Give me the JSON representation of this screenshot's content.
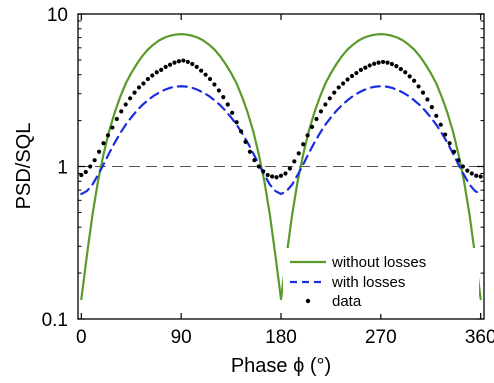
{
  "chart_data": {
    "type": "line",
    "title": "",
    "xlabel": "Phase ϕ (°)",
    "ylabel": "PSD/SQL",
    "xlim": [
      -3,
      363
    ],
    "ylim": [
      0.1,
      10
    ],
    "yscale": "log",
    "xticks": [
      0,
      90,
      180,
      270,
      360
    ],
    "xtick_labels": [
      "0",
      "90",
      "180",
      "270",
      "360"
    ],
    "yticks": [
      0.1,
      1,
      10
    ],
    "ytick_labels": [
      "0.1",
      "1",
      "10"
    ],
    "grid": false,
    "legend_position": "bottom-right",
    "reference_line": {
      "y": 1,
      "style": "dashed",
      "color": "#555555"
    },
    "series": [
      {
        "name": "without losses",
        "style": "solid",
        "color": "#5a9a2a",
        "x": [
          0,
          5,
          10,
          15,
          20,
          25,
          30,
          35,
          40,
          45,
          50,
          55,
          60,
          65,
          70,
          75,
          80,
          85,
          90,
          95,
          100,
          105,
          110,
          115,
          120,
          125,
          130,
          135,
          140,
          145,
          150,
          155,
          160,
          165,
          170,
          175,
          180,
          185,
          190,
          195,
          200,
          205,
          210,
          215,
          220,
          225,
          230,
          235,
          240,
          245,
          250,
          255,
          260,
          265,
          270,
          275,
          280,
          285,
          290,
          295,
          300,
          305,
          310,
          315,
          320,
          325,
          330,
          335,
          340,
          345,
          350,
          355,
          360
        ],
        "y": [
          0.135,
          0.26,
          0.48,
          0.8,
          1.2,
          1.7,
          2.25,
          2.85,
          3.5,
          4.1,
          4.7,
          5.3,
          5.85,
          6.3,
          6.7,
          7.0,
          7.2,
          7.33,
          7.38,
          7.33,
          7.2,
          7.0,
          6.7,
          6.3,
          5.85,
          5.3,
          4.7,
          4.1,
          3.5,
          2.85,
          2.25,
          1.7,
          1.2,
          0.8,
          0.48,
          0.26,
          0.135,
          0.26,
          0.48,
          0.8,
          1.2,
          1.7,
          2.25,
          2.85,
          3.5,
          4.1,
          4.7,
          5.3,
          5.85,
          6.3,
          6.7,
          7.0,
          7.2,
          7.33,
          7.38,
          7.33,
          7.2,
          7.0,
          6.7,
          6.3,
          5.85,
          5.3,
          4.7,
          4.1,
          3.5,
          2.85,
          2.25,
          1.7,
          1.2,
          0.8,
          0.48,
          0.26,
          0.135
        ]
      },
      {
        "name": "with losses",
        "style": "dashed",
        "color": "#1a2ee0",
        "x": [
          0,
          5,
          10,
          15,
          20,
          25,
          30,
          35,
          40,
          45,
          50,
          55,
          60,
          65,
          70,
          75,
          80,
          85,
          90,
          95,
          100,
          105,
          110,
          115,
          120,
          125,
          130,
          135,
          140,
          145,
          150,
          155,
          160,
          165,
          170,
          175,
          180,
          185,
          190,
          195,
          200,
          205,
          210,
          215,
          220,
          225,
          230,
          235,
          240,
          245,
          250,
          255,
          260,
          265,
          270,
          275,
          280,
          285,
          290,
          295,
          300,
          305,
          310,
          315,
          320,
          325,
          330,
          335,
          340,
          345,
          350,
          355,
          360
        ],
        "y": [
          0.66,
          0.69,
          0.76,
          0.88,
          1.03,
          1.22,
          1.43,
          1.65,
          1.88,
          2.1,
          2.32,
          2.53,
          2.72,
          2.9,
          3.05,
          3.18,
          3.28,
          3.34,
          3.36,
          3.34,
          3.28,
          3.18,
          3.05,
          2.9,
          2.72,
          2.53,
          2.32,
          2.1,
          1.88,
          1.65,
          1.43,
          1.22,
          1.03,
          0.88,
          0.76,
          0.69,
          0.66,
          0.69,
          0.76,
          0.88,
          1.03,
          1.22,
          1.43,
          1.65,
          1.88,
          2.1,
          2.32,
          2.53,
          2.72,
          2.9,
          3.05,
          3.18,
          3.28,
          3.34,
          3.36,
          3.34,
          3.28,
          3.18,
          3.05,
          2.9,
          2.72,
          2.53,
          2.32,
          2.1,
          1.88,
          1.65,
          1.43,
          1.22,
          1.03,
          0.88,
          0.76,
          0.69,
          0.66
        ]
      },
      {
        "name": "data",
        "style": "markers",
        "color": "#000000",
        "x": [
          0,
          4,
          8,
          12,
          16,
          20,
          24,
          28,
          32,
          36,
          40,
          44,
          48,
          52,
          56,
          60,
          64,
          68,
          72,
          76,
          80,
          84,
          88,
          92,
          96,
          100,
          104,
          108,
          112,
          116,
          120,
          124,
          128,
          132,
          136,
          140,
          144,
          148,
          152,
          156,
          160,
          164,
          168,
          172,
          176,
          180,
          184,
          188,
          192,
          196,
          200,
          204,
          208,
          212,
          216,
          220,
          224,
          228,
          232,
          236,
          240,
          244,
          248,
          252,
          256,
          260,
          264,
          268,
          272,
          276,
          280,
          284,
          288,
          292,
          296,
          300,
          304,
          308,
          312,
          316,
          320,
          324,
          328,
          332,
          336,
          340,
          344,
          348,
          352,
          356,
          360
        ],
        "y": [
          0.88,
          0.92,
          1.0,
          1.1,
          1.25,
          1.42,
          1.6,
          1.8,
          2.05,
          2.3,
          2.55,
          2.8,
          3.05,
          3.3,
          3.5,
          3.75,
          3.95,
          4.15,
          4.3,
          4.5,
          4.65,
          4.8,
          4.9,
          4.95,
          4.85,
          4.7,
          4.5,
          4.25,
          4.0,
          3.75,
          3.45,
          3.15,
          2.85,
          2.55,
          2.25,
          1.95,
          1.7,
          1.45,
          1.25,
          1.1,
          1.0,
          0.93,
          0.88,
          0.86,
          0.85,
          0.87,
          0.9,
          0.97,
          1.08,
          1.22,
          1.4,
          1.6,
          1.82,
          2.05,
          2.3,
          2.55,
          2.8,
          3.05,
          3.3,
          3.5,
          3.72,
          3.92,
          4.1,
          4.3,
          4.45,
          4.6,
          4.72,
          4.8,
          4.85,
          4.8,
          4.7,
          4.55,
          4.35,
          4.15,
          3.9,
          3.65,
          3.35,
          3.05,
          2.75,
          2.45,
          2.15,
          1.88,
          1.62,
          1.42,
          1.25,
          1.1,
          1.0,
          0.94,
          0.9,
          0.87,
          0.86
        ]
      }
    ]
  }
}
